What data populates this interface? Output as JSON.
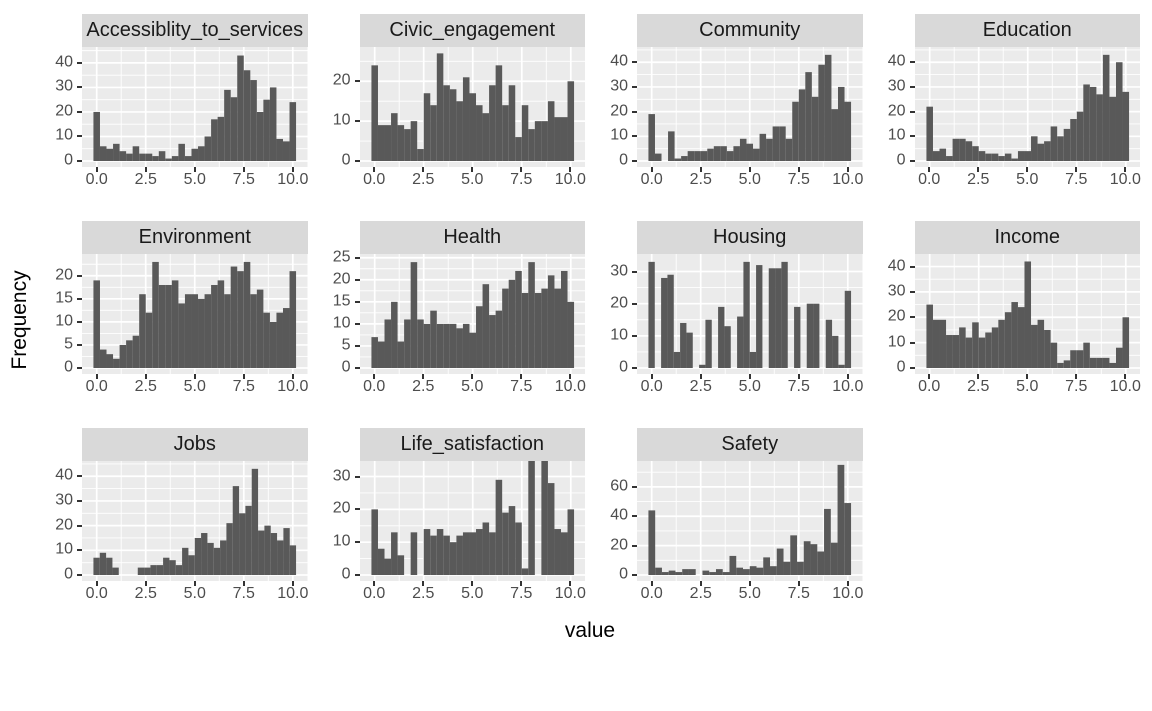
{
  "figure": {
    "xlabel": "value",
    "ylabel": "Frequency"
  },
  "style": {
    "panel_bg": "#EBEBEB",
    "strip_bg": "#D9D9D9",
    "bar_fill": "#595959",
    "gridline": "#FFFFFF",
    "tick_mark": "#333333",
    "tick_label": "#4D4D4D",
    "title_color": "#1A1A1A"
  },
  "chart_data": {
    "type": "bar",
    "subtype": "faceted-histogram",
    "xlabel": "value",
    "ylabel": "Frequency",
    "grid": "on",
    "x_ticks": [
      0,
      2.5,
      5,
      7.5,
      10
    ],
    "x_minor_ticks": [
      1.25,
      3.75,
      6.25,
      8.75
    ],
    "xlim": [
      -0.75,
      10.75
    ],
    "bin_range": [
      -0.1667,
      10.1667
    ],
    "facets": [
      {
        "title": "Accessiblity_to_services",
        "y_ticks": [
          0,
          10,
          20,
          30,
          40
        ],
        "ymax": 45.5,
        "values": [
          20,
          6,
          5,
          7,
          4,
          3,
          6,
          3,
          3,
          2,
          4,
          1,
          2,
          7,
          2,
          5,
          6,
          10,
          17,
          18,
          29,
          26,
          43,
          37,
          33,
          20,
          25,
          30,
          9,
          8,
          24
        ]
      },
      {
        "title": "Civic_engagement",
        "y_ticks": [
          0,
          10,
          20
        ],
        "ymax": 28,
        "values": [
          24,
          9,
          9,
          12,
          9,
          8,
          10,
          3,
          17,
          14,
          27,
          19,
          18,
          15,
          21,
          17,
          14,
          12,
          19,
          24,
          14,
          19,
          6,
          14,
          8,
          10,
          10,
          15,
          11,
          11,
          20
        ]
      },
      {
        "title": "Community",
        "y_ticks": [
          0,
          10,
          20,
          30,
          40
        ],
        "ymax": 45.2,
        "values": [
          19,
          3,
          0,
          12,
          1,
          2,
          4,
          4,
          4,
          5,
          6,
          6,
          4,
          6,
          9,
          7,
          5,
          11,
          9,
          14,
          14,
          9,
          24,
          29,
          36,
          26,
          39,
          43,
          21,
          30,
          24
        ]
      },
      {
        "title": "Education",
        "y_ticks": [
          0,
          10,
          20,
          30,
          40
        ],
        "ymax": 45.2,
        "values": [
          22,
          4,
          5,
          2,
          9,
          9,
          8,
          6,
          4,
          3,
          3,
          2,
          3,
          1,
          4,
          4,
          10,
          7,
          8,
          14,
          10,
          13,
          17,
          20,
          31,
          30,
          27,
          43,
          26,
          40,
          28
        ]
      },
      {
        "title": "Environment",
        "y_ticks": [
          0,
          5,
          10,
          15,
          20
        ],
        "ymax": 24.2,
        "values": [
          19,
          4,
          3,
          2,
          5,
          6,
          7,
          16,
          12,
          23,
          18,
          18,
          19,
          14,
          16,
          16,
          15,
          16,
          18,
          19,
          16,
          22,
          21,
          23,
          16,
          17,
          12,
          10,
          12,
          13,
          21
        ]
      },
      {
        "title": "Health",
        "y_ticks": [
          0,
          5,
          10,
          15,
          20,
          25
        ],
        "ymax": 25.3,
        "values": [
          7,
          6,
          11,
          15,
          6,
          11,
          24,
          11,
          10,
          13,
          10,
          10,
          10,
          9,
          10,
          8,
          14,
          19,
          12,
          13,
          18,
          20,
          22,
          17,
          24,
          17,
          18,
          21,
          18,
          22,
          15
        ]
      },
      {
        "title": "Housing",
        "y_ticks": [
          0,
          10,
          20,
          30
        ],
        "ymax": 34.7,
        "values": [
          33,
          0,
          28,
          29,
          5,
          14,
          11,
          0,
          1,
          15,
          0,
          19,
          13,
          0,
          16,
          33,
          5,
          32,
          0,
          31,
          31,
          33,
          0,
          19,
          0,
          20,
          20,
          0,
          15,
          10,
          1,
          24
        ]
      },
      {
        "title": "Income",
        "y_ticks": [
          0,
          10,
          20,
          30,
          40
        ],
        "ymax": 44,
        "values": [
          25,
          19,
          19,
          13,
          13,
          16,
          12,
          18,
          12,
          14,
          16,
          19,
          22,
          26,
          24,
          42,
          17,
          19,
          15,
          10,
          2,
          3,
          7,
          7,
          10,
          4,
          4,
          4,
          2,
          8,
          20
        ]
      },
      {
        "title": "Jobs",
        "y_ticks": [
          0,
          10,
          20,
          30,
          40
        ],
        "ymax": 45.2,
        "values": [
          7,
          9,
          7,
          3,
          0,
          0,
          0,
          3,
          3,
          4,
          4,
          7,
          6,
          4,
          11,
          8,
          15,
          17,
          13,
          11,
          14,
          21,
          36,
          25,
          28,
          43,
          18,
          20,
          17,
          14,
          19,
          12
        ]
      },
      {
        "title": "Life_satisfaction",
        "y_ticks": [
          0,
          10,
          20,
          30
        ],
        "ymax": 34,
        "values": [
          20,
          8,
          5,
          13,
          6,
          0,
          13,
          0,
          14,
          12,
          14,
          12,
          10,
          12,
          13,
          13,
          14,
          16,
          13,
          29,
          19,
          21,
          16,
          2,
          35,
          0,
          35,
          28,
          14,
          13,
          20
        ]
      },
      {
        "title": "Safety",
        "y_ticks": [
          0,
          20,
          40,
          60
        ],
        "ymax": 76,
        "values": [
          44,
          5,
          2,
          3,
          2,
          4,
          4,
          0,
          3,
          2,
          4,
          2,
          13,
          5,
          4,
          6,
          5,
          12,
          6,
          18,
          9,
          27,
          9,
          23,
          21,
          16,
          45,
          22,
          75,
          49
        ]
      }
    ]
  }
}
